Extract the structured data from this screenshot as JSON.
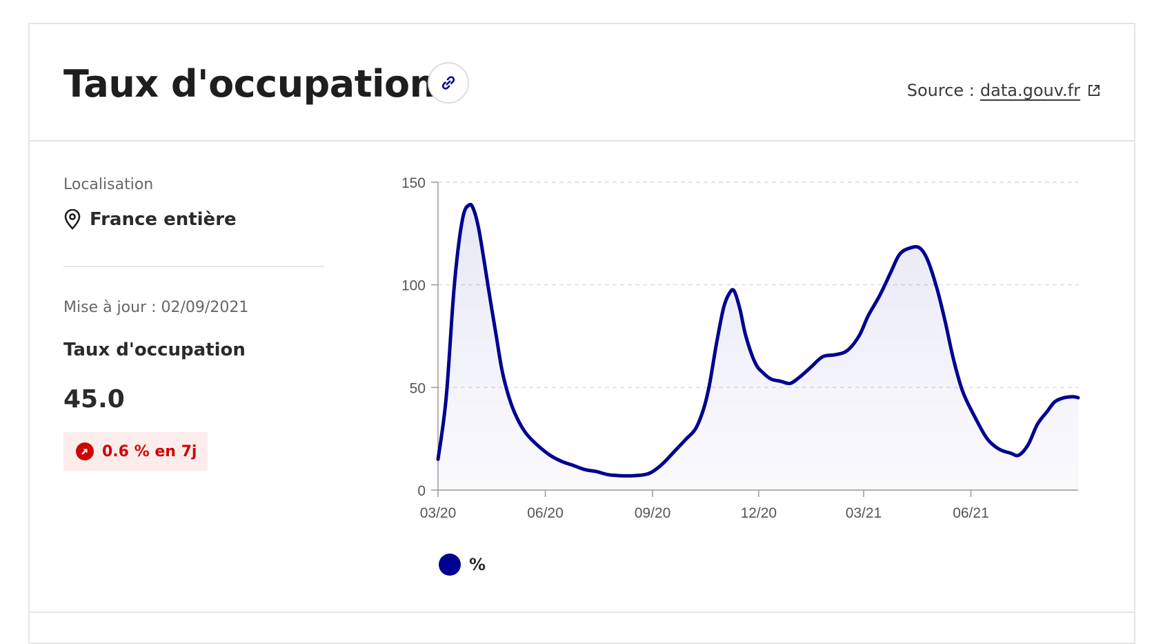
{
  "header": {
    "title": "Taux d'occupation",
    "source_label": "Source :",
    "source_link": "data.gouv.fr"
  },
  "left": {
    "location_label": "Localisation",
    "location_value": "France entière",
    "update_text": "Mise à jour : 02/09/2021",
    "metric_label": "Taux d'occupation",
    "metric_value": "45.0",
    "trend_text": "0.6 % en 7j"
  },
  "colors": {
    "primary": "#000091",
    "trend": "#ce0500",
    "trend_bg": "#fdecec"
  },
  "icons": [
    "link-icon",
    "external-link-icon",
    "map-pin-icon",
    "arrow-up-right-icon"
  ],
  "chart_data": {
    "type": "area",
    "series": [
      {
        "name": "%",
        "color": "#000091",
        "points": [
          [
            "2020-03-01",
            15
          ],
          [
            "2020-03-08",
            45
          ],
          [
            "2020-03-15",
            100
          ],
          [
            "2020-03-22",
            132
          ],
          [
            "2020-03-28",
            139
          ],
          [
            "2020-04-01",
            136
          ],
          [
            "2020-04-05",
            127
          ],
          [
            "2020-04-10",
            110
          ],
          [
            "2020-04-15",
            92
          ],
          [
            "2020-04-20",
            75
          ],
          [
            "2020-04-25",
            58
          ],
          [
            "2020-05-01",
            45
          ],
          [
            "2020-05-07",
            36
          ],
          [
            "2020-05-15",
            28
          ],
          [
            "2020-05-25",
            22
          ],
          [
            "2020-06-05",
            17
          ],
          [
            "2020-06-15",
            14
          ],
          [
            "2020-06-25",
            12
          ],
          [
            "2020-07-05",
            10
          ],
          [
            "2020-07-15",
            9
          ],
          [
            "2020-07-25",
            7.5
          ],
          [
            "2020-08-05",
            7
          ],
          [
            "2020-08-15",
            7
          ],
          [
            "2020-08-25",
            7.5
          ],
          [
            "2020-09-01",
            9
          ],
          [
            "2020-09-10",
            13
          ],
          [
            "2020-09-20",
            19
          ],
          [
            "2020-09-30",
            25
          ],
          [
            "2020-10-08",
            30
          ],
          [
            "2020-10-15",
            40
          ],
          [
            "2020-10-20",
            52
          ],
          [
            "2020-10-26",
            72
          ],
          [
            "2020-11-01",
            89
          ],
          [
            "2020-11-06",
            96
          ],
          [
            "2020-11-10",
            97
          ],
          [
            "2020-11-15",
            88
          ],
          [
            "2020-11-20",
            75
          ],
          [
            "2020-11-28",
            62
          ],
          [
            "2020-12-05",
            57
          ],
          [
            "2020-12-12",
            54
          ],
          [
            "2020-12-20",
            53
          ],
          [
            "2020-12-28",
            52
          ],
          [
            "2021-01-05",
            55
          ],
          [
            "2021-01-15",
            60
          ],
          [
            "2021-01-25",
            65
          ],
          [
            "2021-02-05",
            66
          ],
          [
            "2021-02-15",
            68
          ],
          [
            "2021-02-25",
            75
          ],
          [
            "2021-03-05",
            85
          ],
          [
            "2021-03-15",
            95
          ],
          [
            "2021-03-25",
            107
          ],
          [
            "2021-04-01",
            115
          ],
          [
            "2021-04-10",
            118
          ],
          [
            "2021-04-18",
            118
          ],
          [
            "2021-04-25",
            112
          ],
          [
            "2021-05-03",
            98
          ],
          [
            "2021-05-10",
            82
          ],
          [
            "2021-05-17",
            64
          ],
          [
            "2021-05-25",
            48
          ],
          [
            "2021-06-05",
            35
          ],
          [
            "2021-06-15",
            25
          ],
          [
            "2021-06-25",
            20
          ],
          [
            "2021-07-05",
            18
          ],
          [
            "2021-07-12",
            17
          ],
          [
            "2021-07-20",
            22
          ],
          [
            "2021-07-28",
            32
          ],
          [
            "2021-08-05",
            38
          ],
          [
            "2021-08-12",
            43
          ],
          [
            "2021-08-20",
            45
          ],
          [
            "2021-08-28",
            45.5
          ],
          [
            "2021-09-01",
            45
          ]
        ]
      }
    ],
    "xlim": [
      "2020-03-01",
      "2021-09-01"
    ],
    "ylim": [
      0,
      150
    ],
    "yticks": [
      0,
      50,
      100,
      150
    ],
    "xticks": [
      {
        "date": "2020-03-01",
        "label": "03/20"
      },
      {
        "date": "2020-06-01",
        "label": "06/20"
      },
      {
        "date": "2020-09-01",
        "label": "09/20"
      },
      {
        "date": "2020-12-01",
        "label": "12/20"
      },
      {
        "date": "2021-03-01",
        "label": "03/21"
      },
      {
        "date": "2021-06-01",
        "label": "06/21"
      }
    ],
    "grid": true,
    "legend_position": "bottom-left",
    "legend_label": "%"
  }
}
